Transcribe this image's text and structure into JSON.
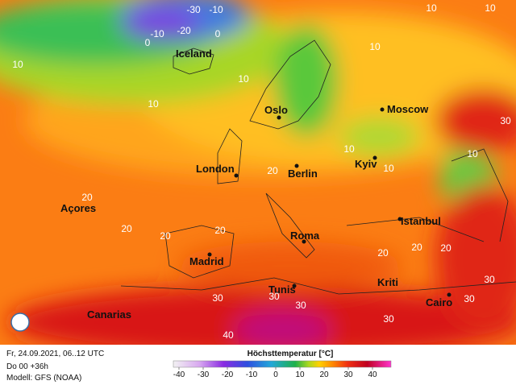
{
  "map": {
    "cities": [
      "Iceland",
      "Oslo",
      "Moscow",
      "London",
      "Berlin",
      "Kyiv",
      "Açores",
      "Istanbul",
      "Madrid",
      "Roma",
      "Tunis",
      "Kriti",
      "Cairo",
      "Canarias"
    ],
    "contour_labels": [
      -30,
      -10,
      -20,
      -10,
      0,
      0,
      10,
      10,
      10,
      10,
      10,
      10,
      10,
      10,
      10,
      20,
      20,
      20,
      20,
      20,
      20,
      20,
      20,
      30,
      30,
      30,
      30,
      30,
      30,
      30,
      40
    ]
  },
  "footer": {
    "valid_time": "Fr, 24.09.2021, 06..12 UTC",
    "run": "Do 00 +36h",
    "model": "Modell: GFS (NOAA)",
    "legend_title": "Höchsttemperatur [°C]",
    "legend_ticks": [
      -40,
      -30,
      -20,
      -10,
      0,
      10,
      20,
      30,
      40
    ]
  }
}
